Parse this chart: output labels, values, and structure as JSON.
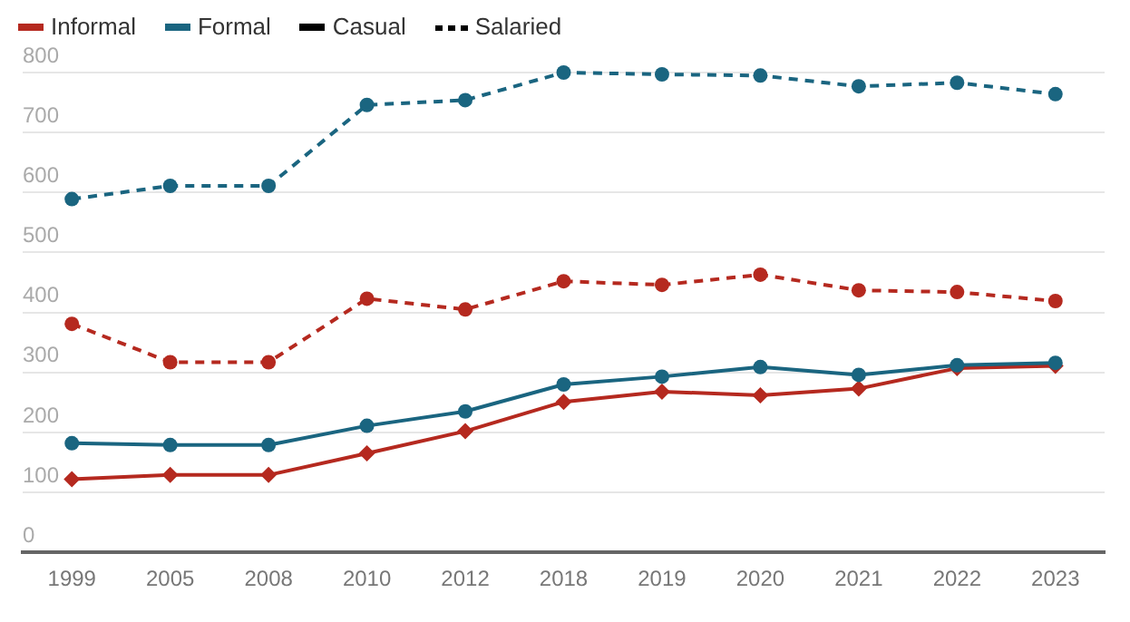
{
  "chart_data": {
    "type": "line",
    "categories": [
      "1999",
      "2005",
      "2008",
      "2010",
      "2012",
      "2018",
      "2019",
      "2020",
      "2021",
      "2022",
      "2023"
    ],
    "series": [
      {
        "name": "Informal",
        "color": "#b5291f",
        "marker": "diamond",
        "line_style": "solid",
        "values": [
          122,
          129,
          129,
          165,
          202,
          251,
          268,
          262,
          273,
          307,
          311
        ]
      },
      {
        "name": "Formal",
        "color": "#1a6580",
        "marker": "circle",
        "line_style": "solid",
        "values": [
          182,
          179,
          179,
          211,
          235,
          280,
          293,
          309,
          296,
          312,
          316
        ]
      },
      {
        "color": "#b5291f",
        "marker": "circle",
        "line_style": "dashed",
        "values": [
          381,
          317,
          317,
          423,
          405,
          452,
          446,
          463,
          437,
          434,
          419
        ]
      },
      {
        "color": "#1a6580",
        "marker": "circle",
        "line_style": "dashed",
        "values": [
          589,
          611,
          611,
          746,
          754,
          800,
          797,
          795,
          777,
          783,
          764
        ]
      }
    ],
    "annotations": [
      "Casual",
      "Salaried"
    ],
    "ylim": [
      0,
      800
    ],
    "yticks": [
      0,
      100,
      200,
      300,
      400,
      500,
      600,
      700,
      800
    ],
    "grid": "y",
    "legend": "top left"
  }
}
